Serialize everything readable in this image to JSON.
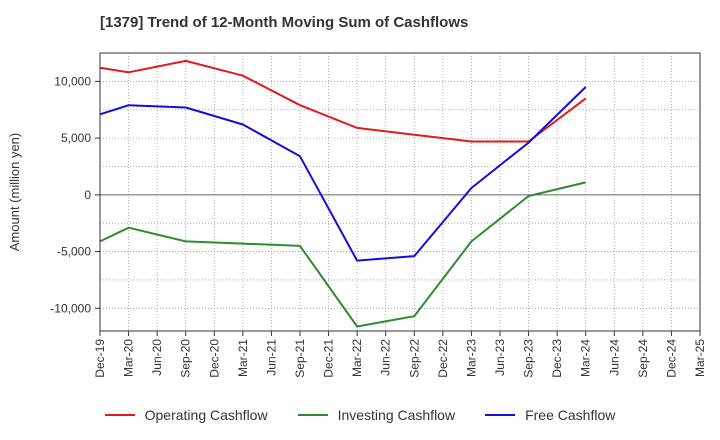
{
  "title": "[1379]  Trend of 12-Month Moving Sum of Cashflows",
  "colors": {
    "operating": "#e31a1c",
    "investing": "#2e8b2e",
    "free": "#1010d8",
    "grid": "#999999",
    "zero_line": "#666666"
  },
  "chart_data": {
    "type": "line",
    "title": "[1379]  Trend of 12-Month Moving Sum of Cashflows",
    "xlabel": "",
    "ylabel": "Amount (million yen)",
    "x": [
      "Dec-19",
      "Mar-20",
      "Jun-20",
      "Sep-20",
      "Dec-20",
      "Mar-21",
      "Jun-21",
      "Sep-21",
      "Dec-21",
      "Mar-22",
      "Jun-22",
      "Sep-22",
      "Dec-22",
      "Mar-23",
      "Jun-23",
      "Sep-23",
      "Dec-23",
      "Mar-24",
      "Jun-24",
      "Sep-24",
      "Dec-24",
      "Mar-25"
    ],
    "ylim": [
      -12000,
      12500
    ],
    "yticks": [
      10000,
      5000,
      0,
      -5000,
      -10000
    ],
    "ytick_labels": [
      "10,000",
      "5,000",
      "0",
      "-5,000",
      "-10,000"
    ],
    "grid": true,
    "legend_position": "bottom",
    "series": [
      {
        "name": "Operating Cashflow",
        "color": "#e31a1c",
        "points": [
          [
            "Dec-19",
            11200
          ],
          [
            "Mar-20",
            10800
          ],
          [
            "Sep-20",
            11800
          ],
          [
            "Mar-21",
            10500
          ],
          [
            "Sep-21",
            7900
          ],
          [
            "Mar-22",
            5900
          ],
          [
            "Sep-22",
            5300
          ],
          [
            "Mar-23",
            4700
          ],
          [
            "Sep-23",
            4700
          ],
          [
            "Mar-24",
            8500
          ]
        ]
      },
      {
        "name": "Investing Cashflow",
        "color": "#2e8b2e",
        "points": [
          [
            "Dec-19",
            -4100
          ],
          [
            "Mar-20",
            -2900
          ],
          [
            "Sep-20",
            -4100
          ],
          [
            "Mar-21",
            -4300
          ],
          [
            "Sep-21",
            -4500
          ],
          [
            "Mar-22",
            -11600
          ],
          [
            "Sep-22",
            -10700
          ],
          [
            "Mar-23",
            -4100
          ],
          [
            "Sep-23",
            -100
          ],
          [
            "Mar-24",
            1100
          ]
        ]
      },
      {
        "name": "Free Cashflow",
        "color": "#1010d8",
        "points": [
          [
            "Dec-19",
            7100
          ],
          [
            "Mar-20",
            7900
          ],
          [
            "Sep-20",
            7700
          ],
          [
            "Mar-21",
            6200
          ],
          [
            "Sep-21",
            3400
          ],
          [
            "Mar-22",
            -5800
          ],
          [
            "Sep-22",
            -5400
          ],
          [
            "Mar-23",
            600
          ],
          [
            "Sep-23",
            4600
          ],
          [
            "Mar-24",
            9500
          ]
        ]
      }
    ]
  }
}
